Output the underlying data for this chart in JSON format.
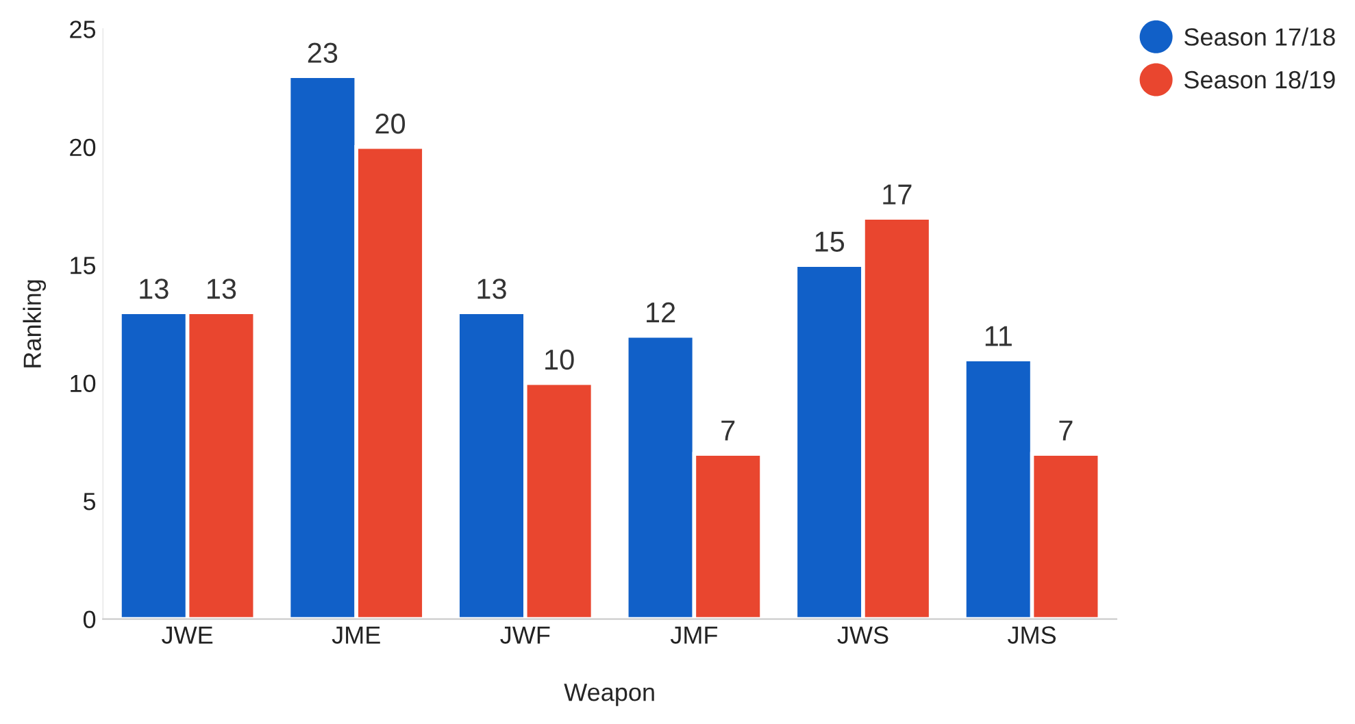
{
  "chart_data": {
    "type": "bar",
    "xlabel": "Weapon",
    "ylabel": "Ranking",
    "categories": [
      "JWE",
      "JME",
      "JWF",
      "JMF",
      "JWS",
      "JMS"
    ],
    "series": [
      {
        "name": "Season 17/18",
        "color": "#1160c8",
        "values": [
          13,
          23,
          13,
          12,
          15,
          11
        ]
      },
      {
        "name": "Season 18/19",
        "color": "#e9462f",
        "values": [
          13,
          20,
          10,
          7,
          17,
          7
        ]
      }
    ],
    "ylim": [
      0,
      25
    ],
    "yticks": [
      0,
      5,
      10,
      15,
      20,
      25
    ],
    "grid": false,
    "legend": "top right",
    "data_labels": true
  }
}
